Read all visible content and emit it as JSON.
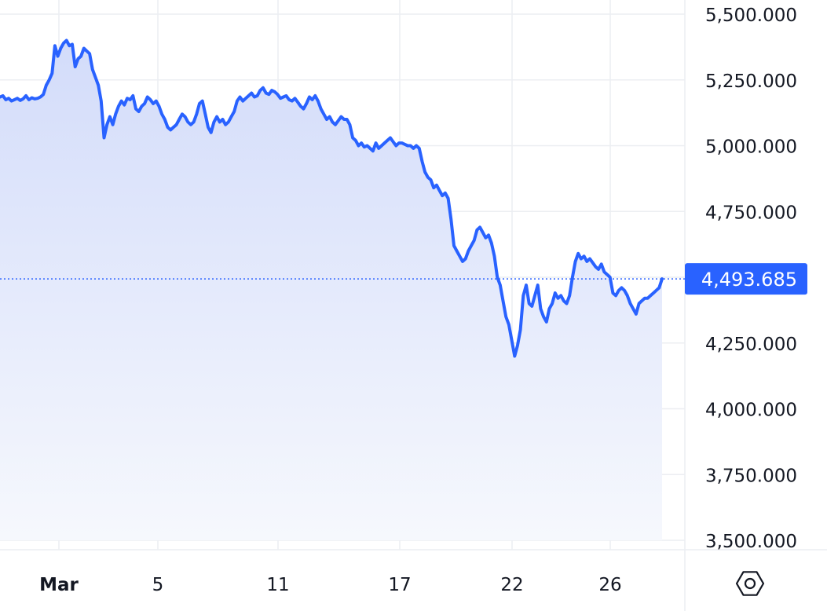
{
  "colors": {
    "line": "#2962ff",
    "grid": "#eceef2",
    "text": "#131722",
    "price_badge": "#2962ff",
    "fill_top": "#d3dcfa",
    "fill_bottom": "#f6f8fd"
  },
  "chart_data": {
    "type": "area",
    "title": "",
    "xlabel": "",
    "ylabel": "",
    "ylim": [
      3500,
      5500
    ],
    "y_ticks": [
      "5,500.000",
      "5,250.000",
      "5,000.000",
      "4,750.000",
      "4,250.000",
      "4,000.000",
      "3,750.000",
      "3,500.000"
    ],
    "x_ticks": [
      "Mar",
      "5",
      "11",
      "17",
      "22",
      "26"
    ],
    "x_ticks_bold": [
      "Mar"
    ],
    "grid": true,
    "last_price": 4493.685,
    "last_price_label": "4,493.685",
    "settings_icon": "hexagon-gear-icon",
    "series": [
      {
        "values": [
          5185,
          5190,
          5175,
          5180,
          5170,
          5175,
          5180,
          5172,
          5178,
          5190,
          5175,
          5182,
          5178,
          5180,
          5185,
          5195,
          5230,
          5250,
          5275,
          5380,
          5340,
          5370,
          5390,
          5400,
          5380,
          5385,
          5300,
          5330,
          5340,
          5370,
          5360,
          5350,
          5290,
          5260,
          5230,
          5170,
          5030,
          5080,
          5110,
          5080,
          5120,
          5150,
          5170,
          5155,
          5180,
          5175,
          5190,
          5140,
          5130,
          5150,
          5160,
          5185,
          5175,
          5160,
          5170,
          5150,
          5120,
          5100,
          5070,
          5060,
          5070,
          5080,
          5100,
          5120,
          5110,
          5090,
          5080,
          5090,
          5120,
          5160,
          5170,
          5120,
          5070,
          5050,
          5090,
          5110,
          5090,
          5100,
          5080,
          5090,
          5110,
          5130,
          5170,
          5185,
          5170,
          5180,
          5190,
          5200,
          5185,
          5190,
          5210,
          5220,
          5200,
          5195,
          5210,
          5205,
          5195,
          5180,
          5185,
          5190,
          5175,
          5170,
          5180,
          5165,
          5150,
          5140,
          5160,
          5185,
          5175,
          5190,
          5170,
          5140,
          5120,
          5100,
          5110,
          5090,
          5080,
          5095,
          5110,
          5100,
          5100,
          5080,
          5030,
          5020,
          5000,
          5010,
          4995,
          5000,
          4990,
          4980,
          5010,
          4990,
          5000,
          5010,
          5020,
          5030,
          5015,
          5000,
          5010,
          5010,
          5005,
          5000,
          5000,
          4990,
          5000,
          4990,
          4940,
          4900,
          4880,
          4870,
          4840,
          4850,
          4830,
          4810,
          4820,
          4800,
          4720,
          4620,
          4600,
          4580,
          4560,
          4570,
          4600,
          4620,
          4640,
          4680,
          4690,
          4670,
          4650,
          4660,
          4630,
          4580,
          4500,
          4470,
          4410,
          4350,
          4320,
          4260,
          4200,
          4240,
          4300,
          4430,
          4470,
          4400,
          4390,
          4430,
          4470,
          4380,
          4350,
          4330,
          4380,
          4400,
          4440,
          4420,
          4430,
          4410,
          4400,
          4430,
          4500,
          4560,
          4590,
          4570,
          4580,
          4560,
          4570,
          4555,
          4540,
          4530,
          4550,
          4520,
          4510,
          4500,
          4440,
          4430,
          4450,
          4460,
          4450,
          4430,
          4400,
          4380,
          4360,
          4400,
          4410,
          4420,
          4420,
          4430,
          4440,
          4450,
          4460,
          4493.685
        ]
      }
    ]
  }
}
